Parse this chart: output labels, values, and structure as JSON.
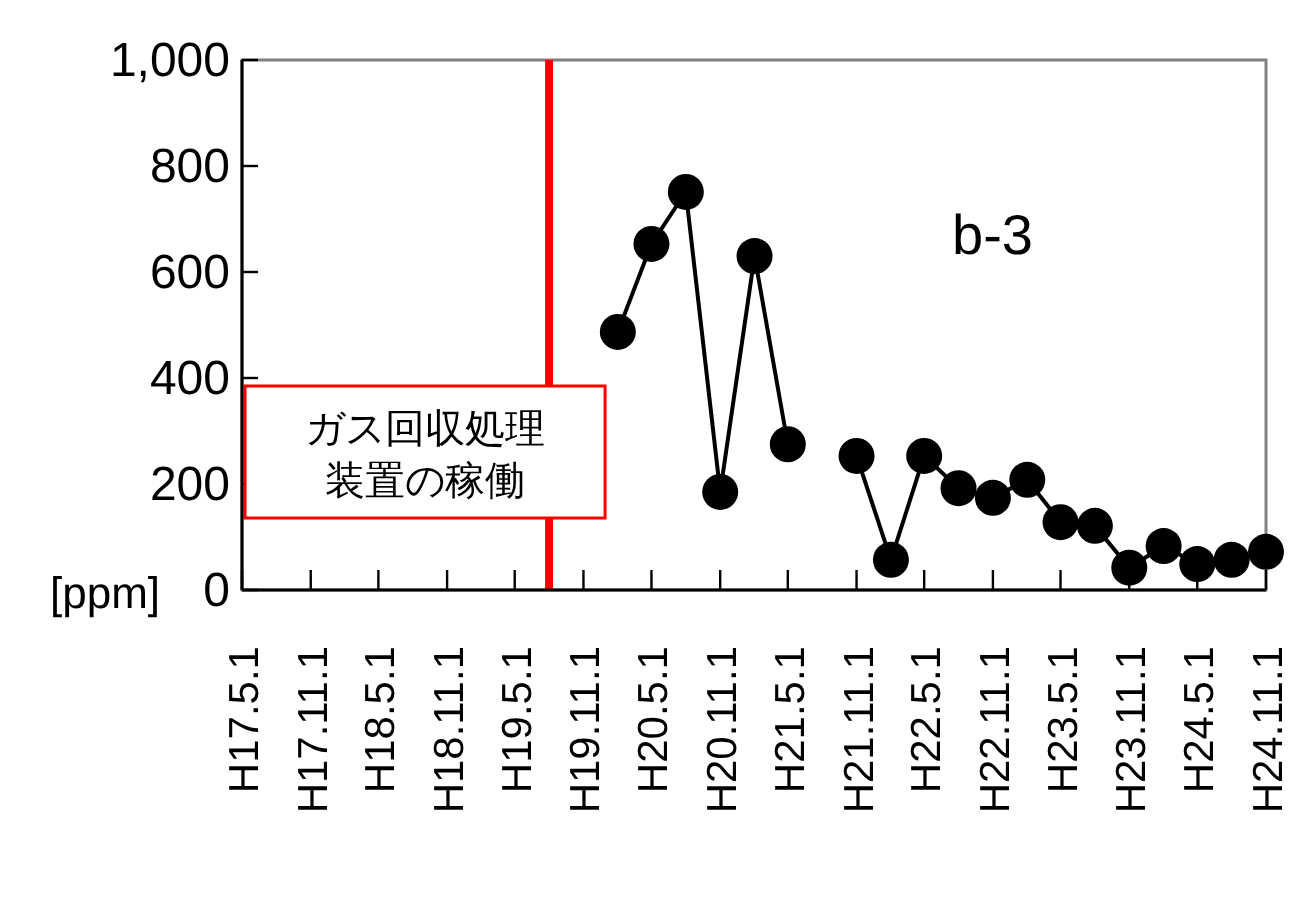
{
  "chart_data": {
    "type": "line",
    "series": [
      {
        "color": "#000000",
        "x": [
          "2008-02-01",
          "2008-05-01",
          "2008-08-01",
          "2008-11-01",
          "2009-02-01",
          "2009-05-01"
        ],
        "values": [
          487,
          653,
          751,
          185,
          630,
          275
        ]
      },
      {
        "color": "#000000",
        "x": [
          "2009-11-01",
          "2010-02-01",
          "2010-05-01",
          "2010-08-01",
          "2010-11-01",
          "2011-02-01",
          "2011-05-01",
          "2011-08-01",
          "2011-11-01",
          "2012-02-01",
          "2012-05-01",
          "2012-08-01",
          "2012-11-01"
        ],
        "values": [
          253,
          57,
          253,
          192,
          174,
          208,
          128,
          121,
          42,
          83,
          49,
          57,
          72
        ]
      }
    ],
    "xlim": [
      "2005-05-01",
      "2012-11-01"
    ],
    "xticks": [
      {
        "value": "2005-05-01",
        "label": "H17.5.1"
      },
      {
        "value": "2005-11-01",
        "label": "H17.11.1"
      },
      {
        "value": "2006-05-01",
        "label": "H18.5.1"
      },
      {
        "value": "2006-11-01",
        "label": "H18.11.1"
      },
      {
        "value": "2007-05-01",
        "label": "H19.5.1"
      },
      {
        "value": "2007-11-01",
        "label": "H19.11.1"
      },
      {
        "value": "2008-05-01",
        "label": "H20.5.1"
      },
      {
        "value": "2008-11-01",
        "label": "H20.11.1"
      },
      {
        "value": "2009-05-01",
        "label": "H21.5.1"
      },
      {
        "value": "2009-11-01",
        "label": "H21.11.1"
      },
      {
        "value": "2010-05-01",
        "label": "H22.5.1"
      },
      {
        "value": "2010-11-01",
        "label": "H22.11.1"
      },
      {
        "value": "2011-05-01",
        "label": "H23.5.1"
      },
      {
        "value": "2011-11-01",
        "label": "H23.11.1"
      },
      {
        "value": "2012-05-01",
        "label": "H24.5.1"
      },
      {
        "value": "2012-11-01",
        "label": "H24.11.1"
      }
    ],
    "ylim": [
      0,
      1000
    ],
    "yticks": [
      0,
      200,
      400,
      600,
      800,
      {
        "value": 1000,
        "label": "1,000"
      }
    ],
    "ylabel": "[ppm]",
    "marker": "circle",
    "line_style": "solid",
    "annotations": [
      "b-3"
    ],
    "ref_lines": [
      {
        "axis": "x",
        "value": "2007-08-01",
        "label": "ガス回収処理装置の稼働",
        "color": "#ff0000"
      }
    ]
  }
}
